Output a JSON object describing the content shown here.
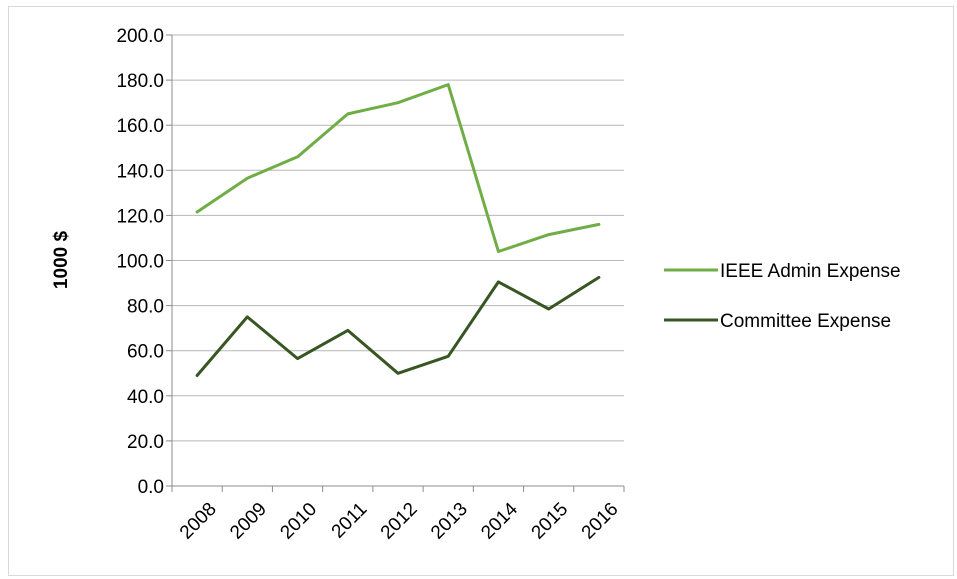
{
  "chart_data": {
    "type": "line",
    "title": "",
    "xlabel": "",
    "ylabel": "1000 $",
    "categories": [
      "2008",
      "2009",
      "2010",
      "2011",
      "2012",
      "2013",
      "2014",
      "2015",
      "2016"
    ],
    "yticks": [
      "0.0",
      "20.0",
      "40.0",
      "60.0",
      "80.0",
      "100.0",
      "120.0",
      "140.0",
      "160.0",
      "180.0",
      "200.0"
    ],
    "ylim": [
      0,
      200
    ],
    "grid": true,
    "legend_position": "right",
    "series": [
      {
        "name": "IEEE Admin Expense",
        "color": "#70ad47",
        "values": [
          121.5,
          136.5,
          146.0,
          165.0,
          170.0,
          178.0,
          104.0,
          111.5,
          116.0
        ]
      },
      {
        "name": "Committee Expense",
        "color": "#375623",
        "values": [
          49.0,
          75.0,
          56.5,
          69.0,
          50.0,
          57.5,
          90.5,
          78.5,
          92.5
        ]
      }
    ]
  }
}
